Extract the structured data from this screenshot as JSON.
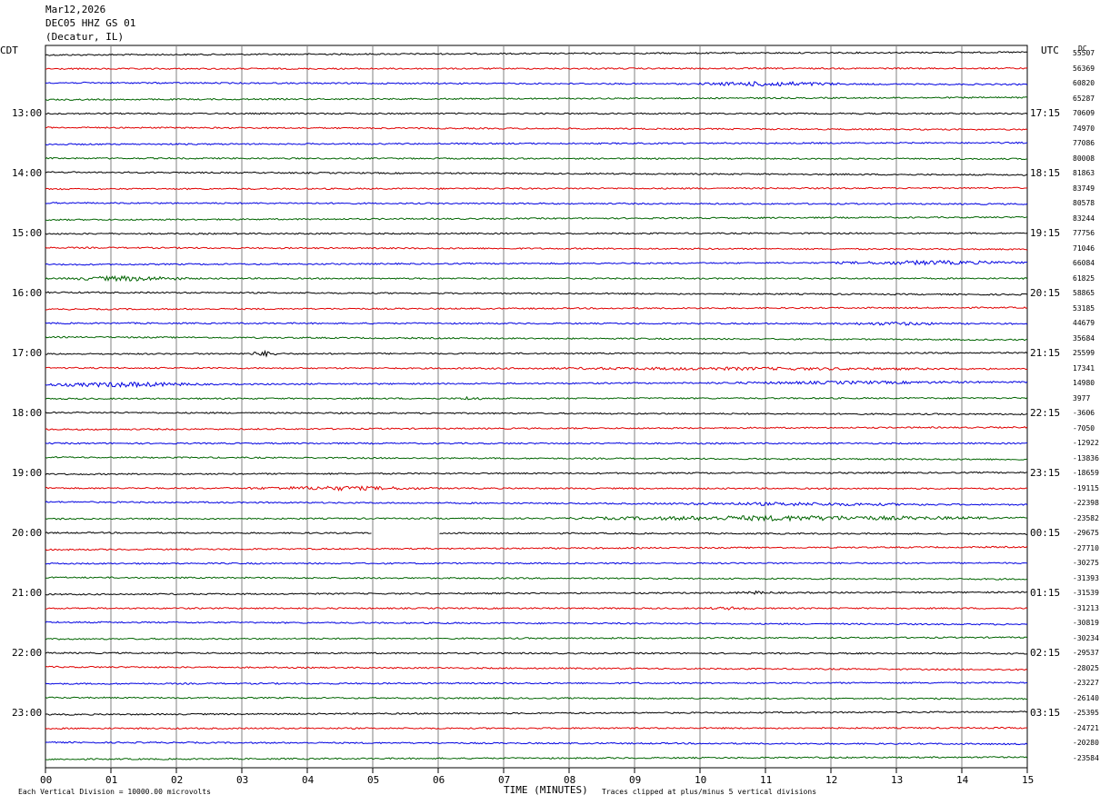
{
  "header": {
    "date": "Mar12,2026",
    "station": "DEC05 HHZ GS 01",
    "location": "(Decatur, IL)"
  },
  "left_axis_title": "CDT",
  "right_axis_title": "UTC",
  "right_corner": "DC",
  "footer": {
    "scale_note": "Each Vertical Division = 10000.00 microvolts",
    "x_title": "TIME (MINUTES)",
    "clip_note": "Traces clipped at plus/minus 5 vertical divisions"
  },
  "colors": {
    "black": "#000000",
    "red": "#e00000",
    "blue": "#0000e0",
    "green": "#006400",
    "grid": "#808080"
  },
  "chart_data": {
    "type": "line",
    "x_ticks": [
      "00",
      "01",
      "02",
      "03",
      "04",
      "05",
      "06",
      "07",
      "08",
      "09",
      "10",
      "11",
      "12",
      "13",
      "14",
      "15"
    ],
    "xlim": [
      0,
      15
    ],
    "left_hour_labels": [
      "13:00",
      "14:00",
      "15:00",
      "16:00",
      "17:00",
      "18:00",
      "19:00",
      "20:00",
      "21:00",
      "22:00",
      "23:00"
    ],
    "right_hour_labels": [
      "17:15",
      "18:15",
      "19:15",
      "20:15",
      "21:15",
      "22:15",
      "23:15",
      "00:15",
      "01:15",
      "02:15",
      "03:15"
    ],
    "trace_colors": [
      "black",
      "red",
      "blue",
      "green"
    ],
    "trace_count": 48,
    "trace_offsets": [
      "55507",
      "56369",
      "60820",
      "65287",
      "70609",
      "74970",
      "77086",
      "80008",
      "81863",
      "83749",
      "80578",
      "83244",
      "77756",
      "71046",
      "66084",
      "61825",
      "58865",
      "53185",
      "44679",
      "35684",
      "25599",
      "17341",
      "14980",
      "3977",
      "-3606",
      "-7050",
      "-12922",
      "-13836",
      "-18659",
      "-19115",
      "-22398",
      "-23582",
      "-29675",
      "-27710",
      "-30275",
      "-31393",
      "-31539",
      "-31213",
      "-30819",
      "-30234",
      "-29537",
      "-28025",
      "-23227",
      "-26140",
      "-25395",
      "-24721",
      "-20280",
      "-23584"
    ],
    "data_gap": {
      "trace_index": 32,
      "start_min": 5.0,
      "end_min": 6.0
    },
    "activity": [
      {
        "trace_index": 2,
        "start_min": 10.0,
        "end_min": 12.2,
        "level": 3
      },
      {
        "trace_index": 14,
        "start_min": 12.0,
        "end_min": 15.0,
        "level": 2.5
      },
      {
        "trace_index": 15,
        "start_min": 0.3,
        "end_min": 2.2,
        "level": 3
      },
      {
        "trace_index": 18,
        "start_min": 12.0,
        "end_min": 14.0,
        "level": 2
      },
      {
        "trace_index": 20,
        "start_min": 3.1,
        "end_min": 3.6,
        "level": 3
      },
      {
        "trace_index": 21,
        "start_min": 6.0,
        "end_min": 15.0,
        "level": 1.8
      },
      {
        "trace_index": 22,
        "start_min": 0.0,
        "end_min": 2.4,
        "level": 3
      },
      {
        "trace_index": 22,
        "start_min": 9.5,
        "end_min": 15.0,
        "level": 1.8
      },
      {
        "trace_index": 23,
        "start_min": 6.3,
        "end_min": 6.7,
        "level": 2.5
      },
      {
        "trace_index": 29,
        "start_min": 3.0,
        "end_min": 6.0,
        "level": 2.5
      },
      {
        "trace_index": 30,
        "start_min": 9.0,
        "end_min": 14.0,
        "level": 2
      },
      {
        "trace_index": 31,
        "start_min": 8.0,
        "end_min": 14.5,
        "level": 3
      },
      {
        "trace_index": 36,
        "start_min": 10.5,
        "end_min": 11.2,
        "level": 2
      },
      {
        "trace_index": 37,
        "start_min": 10.0,
        "end_min": 11.0,
        "level": 1.8
      }
    ]
  }
}
